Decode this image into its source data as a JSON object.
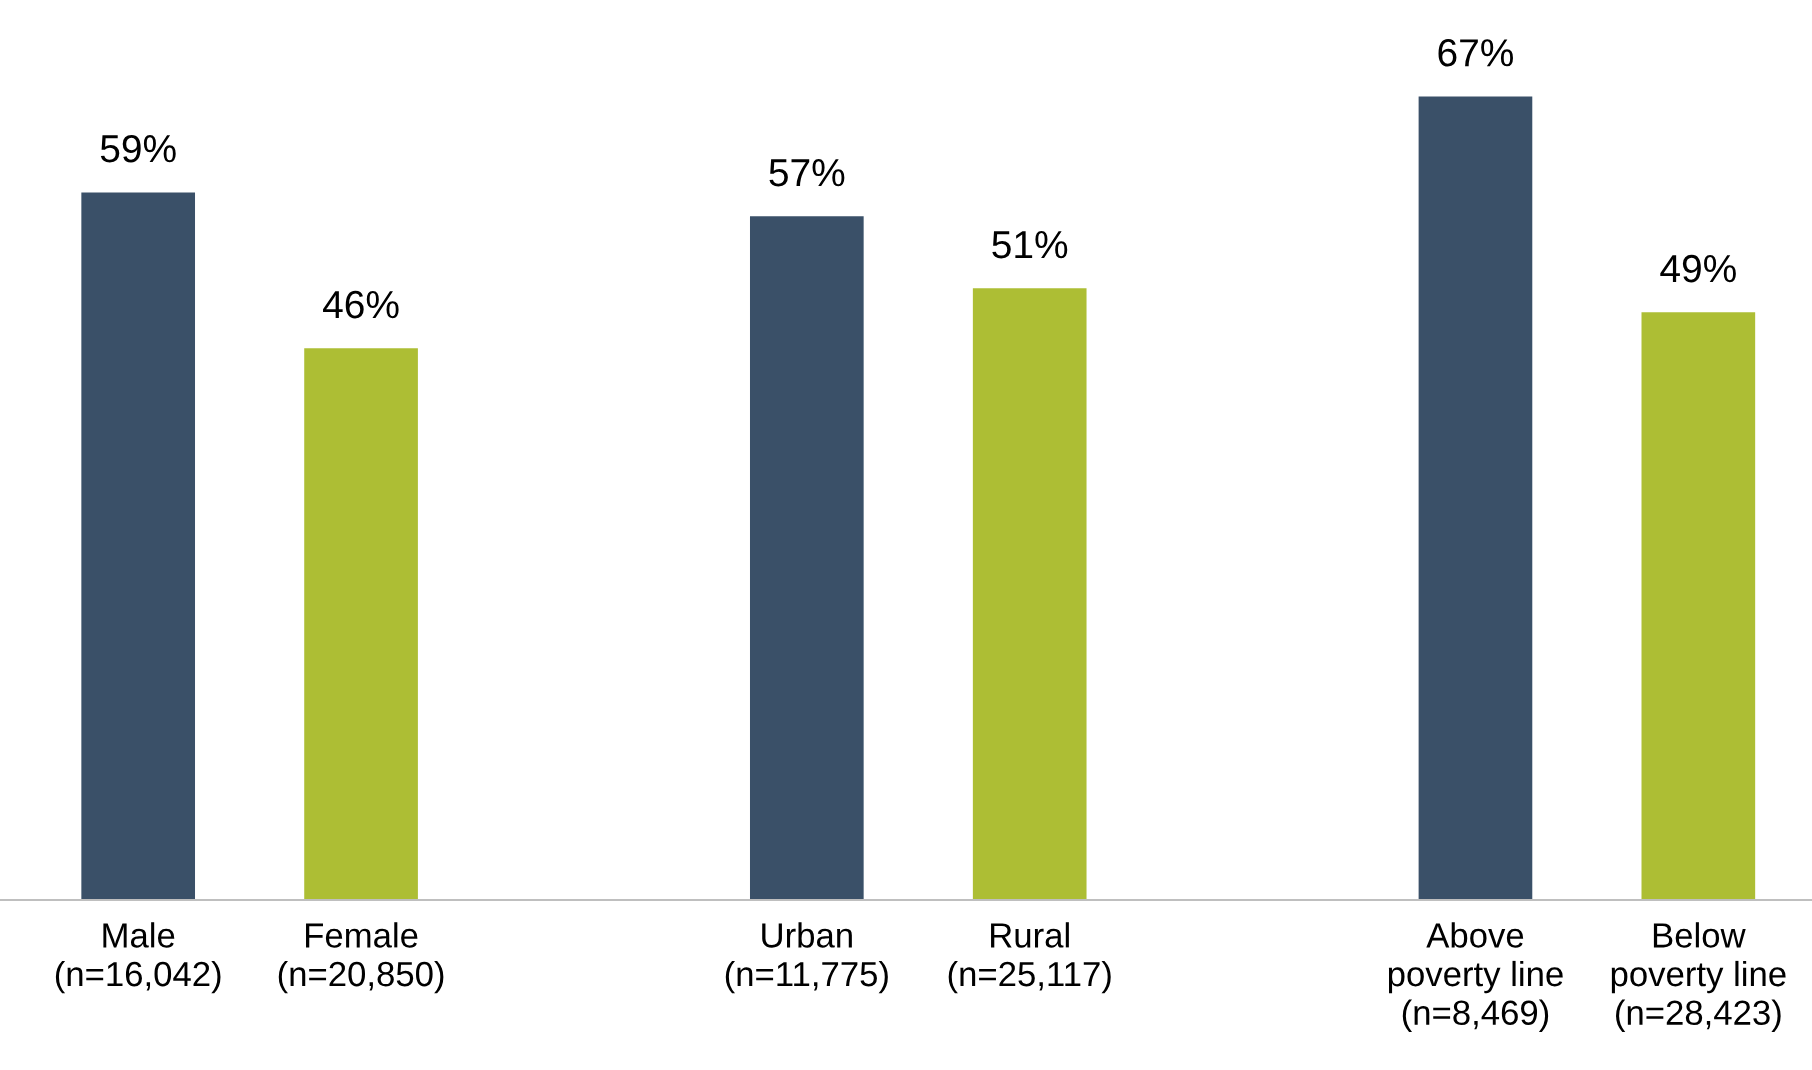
{
  "chart_data": {
    "type": "bar",
    "categories": [
      "Male\n(n=16,042)",
      "Female\n(n=20,850)",
      null,
      "Urban\n(n=11,775)",
      "Rural\n(n=25,117)",
      null,
      "Above\npoverty line\n(n=8,469)",
      "Below\npoverty line\n(n=28,423)"
    ],
    "values": [
      59,
      46,
      null,
      57,
      51,
      null,
      67,
      49
    ],
    "colors": [
      "#3a5068",
      "#adbe34",
      null,
      "#3a5068",
      "#adbe34",
      null,
      "#3a5068",
      "#adbe34"
    ],
    "value_labels": [
      "59%",
      "46%",
      null,
      "57%",
      "51%",
      null,
      "67%",
      "49%"
    ],
    "tick_labels": "x",
    "grid": false,
    "legend": false
  }
}
